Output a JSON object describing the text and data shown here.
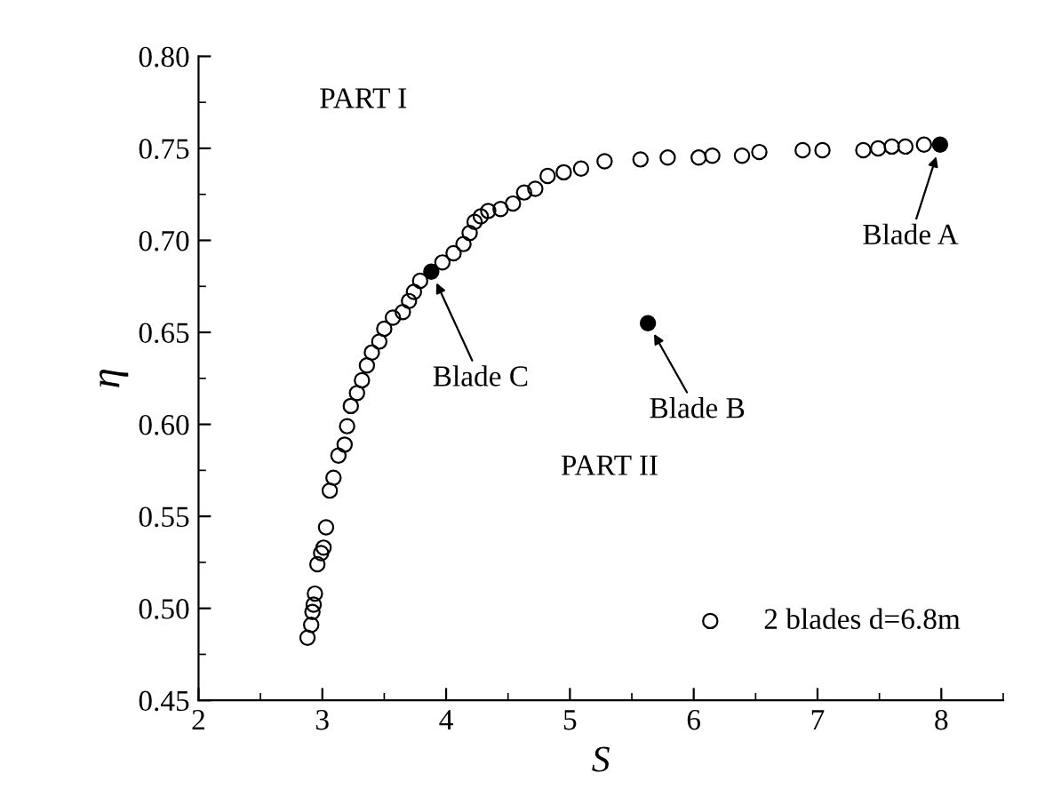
{
  "chart_data": {
    "type": "scatter",
    "xlabel": "S",
    "ylabel": "η",
    "xlim": [
      2,
      8.5
    ],
    "xticks": [
      2,
      3,
      4,
      5,
      6,
      7,
      8
    ],
    "ylim": [
      0.45,
      0.8
    ],
    "yticks": [
      0.45,
      {
        "value": 0.5,
        "label": "0.50"
      },
      0.55,
      {
        "value": 0.6,
        "label": "0.60"
      },
      0.65,
      {
        "value": 0.7,
        "label": "0.70"
      },
      0.75,
      {
        "value": 0.8,
        "label": "0.80"
      }
    ],
    "marker": "circle",
    "grid": false,
    "legend": "bottom right",
    "series": [
      {
        "name": "2 blades d=6.8m",
        "color": "#000000",
        "x": [
          2.88,
          2.91,
          2.92,
          2.93,
          2.94,
          2.96,
          2.99,
          3.01,
          3.03,
          3.06,
          3.09,
          3.13,
          3.18,
          3.2,
          3.23,
          3.28,
          3.32,
          3.36,
          3.4,
          3.46,
          3.5,
          3.57,
          3.65,
          3.7,
          3.74,
          3.79,
          3.97,
          4.06,
          4.14,
          4.19,
          4.23,
          4.28,
          4.34,
          4.44,
          4.54,
          4.63,
          4.72,
          4.82,
          4.95,
          5.09,
          5.28,
          5.57,
          5.79,
          6.04,
          6.15,
          6.39,
          6.53,
          6.88,
          7.04,
          7.37,
          7.49,
          7.6,
          7.71,
          7.86
        ],
        "values": [
          0.484,
          0.491,
          0.498,
          0.502,
          0.508,
          0.524,
          0.53,
          0.533,
          0.544,
          0.564,
          0.571,
          0.583,
          0.589,
          0.599,
          0.61,
          0.617,
          0.624,
          0.632,
          0.639,
          0.645,
          0.652,
          0.658,
          0.661,
          0.667,
          0.672,
          0.678,
          0.688,
          0.693,
          0.698,
          0.704,
          0.71,
          0.713,
          0.716,
          0.717,
          0.72,
          0.726,
          0.728,
          0.735,
          0.737,
          0.739,
          0.743,
          0.744,
          0.745,
          0.745,
          0.746,
          0.746,
          0.748,
          0.749,
          0.749,
          0.749,
          0.75,
          0.751,
          0.751,
          0.752
        ]
      },
      {
        "color": "#000000",
        "x": [
          7.99,
          5.63,
          3.88
        ],
        "values": [
          0.752,
          0.655,
          0.683
        ]
      }
    ],
    "annotations": [
      {
        "text": "Blade A",
        "x": 7.99,
        "y": 0.752
      },
      {
        "text": "Blade B",
        "x": 5.63,
        "y": 0.655
      },
      {
        "text": "Blade C",
        "x": 3.88,
        "y": 0.683
      },
      "PART I",
      "PART II"
    ]
  }
}
